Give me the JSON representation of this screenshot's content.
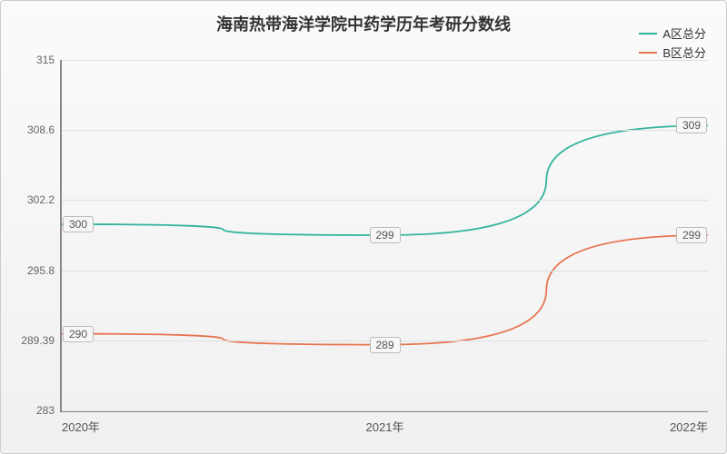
{
  "chart": {
    "type": "line",
    "title": "海南热带海洋学院中药学历年考研分数线",
    "title_fontsize": 18,
    "background_gradient_top": "#fbfbfb",
    "background_gradient_bottom": "#f0f0f0",
    "border_color": "#cccccc",
    "axis_color": "#888888",
    "grid_color": "#e0e0e0",
    "label_text_color": "#555555",
    "series": [
      {
        "name": "A区总分",
        "color": "#2fb39a",
        "line_width": 1.8,
        "points": [
          {
            "x": "2020年",
            "y": 300,
            "label": "300"
          },
          {
            "x": "2021年",
            "y": 299,
            "label": "299"
          },
          {
            "x": "2022年",
            "y": 309,
            "label": "309"
          }
        ]
      },
      {
        "name": "B区总分",
        "color": "#e7734f",
        "line_width": 1.8,
        "points": [
          {
            "x": "2020年",
            "y": 290,
            "label": "290"
          },
          {
            "x": "2021年",
            "y": 289,
            "label": "289"
          },
          {
            "x": "2022年",
            "y": 299,
            "label": "299"
          }
        ]
      }
    ],
    "x_categories": [
      "2020年",
      "2021年",
      "2022年"
    ],
    "y_axis": {
      "min": 283,
      "max": 315,
      "ticks": [
        283,
        289.39,
        295.8,
        302.2,
        308.6,
        315
      ],
      "tick_labels": [
        "283",
        "289.39",
        "295.8",
        "302.2",
        "308.6",
        "315"
      ]
    },
    "legend_position": "top-right",
    "label_fontsize": 12
  }
}
